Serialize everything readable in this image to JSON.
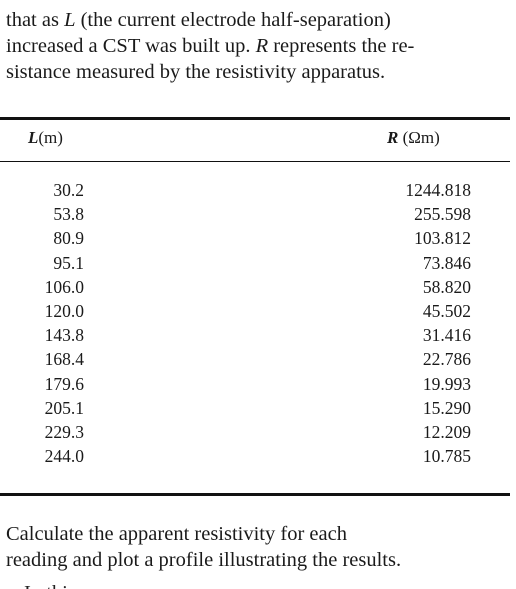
{
  "intro": {
    "lines": [
      "that as L (the current electrode half-separation)",
      "increased a CST was built up. R represents the re-",
      "sistance measured by the resistivity apparatus."
    ]
  },
  "table": {
    "header_l_symbol": "L",
    "header_l_unit": "(m)",
    "header_r_symbol": "R",
    "header_r_unit": "(Ωm)",
    "L": [
      "30.2",
      "53.8",
      "80.9",
      "95.1",
      "106.0",
      "120.0",
      "143.8",
      "168.4",
      "179.6",
      "205.1",
      "229.3",
      "244.0"
    ],
    "R": [
      "1244.818",
      "255.598",
      "103.812",
      "73.846",
      "58.820",
      "45.502",
      "31.416",
      "22.786",
      "19.993",
      "15.290",
      "12.209",
      "10.785"
    ]
  },
  "outro": {
    "lines": [
      "Calculate the apparent resistivity for each",
      "reading and plot a profile illustrating the results."
    ]
  },
  "cutoff_text": "In this"
}
